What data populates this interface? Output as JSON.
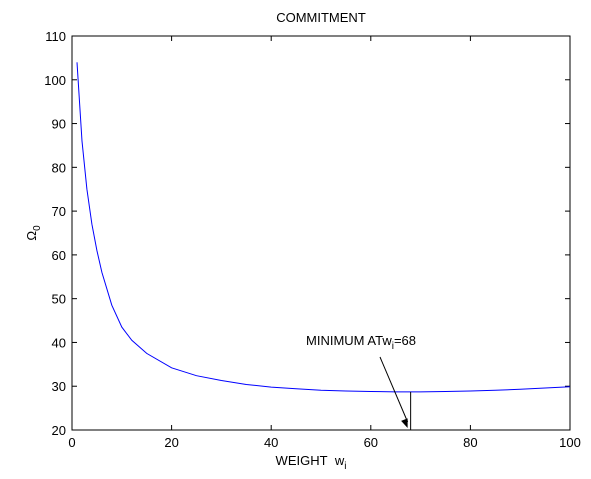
{
  "chart_data": {
    "type": "line",
    "title": "COMMITMENT",
    "xlabel": "WEIGHT",
    "xlabel_symbol": "w",
    "xlabel_sub": "i",
    "ylabel": "Ω",
    "ylabel_sub": "0",
    "xlim": [
      0,
      100
    ],
    "ylim": [
      20,
      110
    ],
    "xticks": [
      0,
      20,
      40,
      60,
      80,
      100
    ],
    "yticks": [
      20,
      30,
      40,
      50,
      60,
      70,
      80,
      90,
      100,
      110
    ],
    "grid": false,
    "line_color": "#0000ff",
    "series": [
      {
        "x": [
          1,
          2,
          3,
          4,
          5,
          6,
          8,
          10,
          12,
          15,
          20,
          25,
          30,
          35,
          40,
          45,
          50,
          55,
          60,
          65,
          68,
          70,
          75,
          80,
          85,
          90,
          95,
          100
        ],
        "y": [
          104,
          86,
          75,
          67,
          61,
          56,
          48.5,
          43.5,
          40.5,
          37.5,
          34.2,
          32.4,
          31.3,
          30.4,
          29.8,
          29.4,
          29.1,
          28.9,
          28.8,
          28.7,
          28.7,
          28.7,
          28.8,
          28.9,
          29.1,
          29.3,
          29.6,
          29.9
        ]
      }
    ],
    "annotation": {
      "text_prefix": "MINIMUM AT",
      "text_symbol": "w",
      "text_sub": "i",
      "text_suffix": "=68",
      "x": 68,
      "y": 28.7
    }
  }
}
